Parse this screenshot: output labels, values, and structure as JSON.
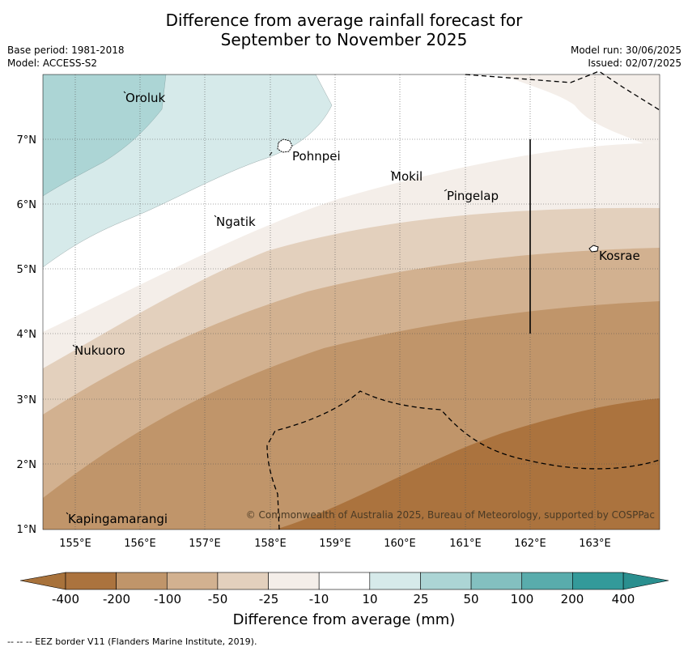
{
  "header": {
    "title_line1": "Difference from average rainfall forecast for",
    "title_line2": "September to November 2025",
    "base_period": "Base period: 1981-2018",
    "model": "Model: ACCESS-S2",
    "model_run": "Model run: 30/06/2025",
    "issued": "Issued: 02/07/2025"
  },
  "map": {
    "lon_labels": [
      "155°E",
      "156°E",
      "157°E",
      "158°E",
      "159°E",
      "160°E",
      "161°E",
      "162°E",
      "163°E"
    ],
    "lat_labels": [
      "7°N",
      "6°N",
      "5°N",
      "4°N",
      "3°N",
      "2°N",
      "1°N"
    ],
    "places": [
      "Oroluk",
      "Pohnpei",
      "Mokil",
      "Pingelap",
      "Ngatik",
      "Kosrae",
      "Nukuoro",
      "Kapingamarangi"
    ],
    "copyright": "© Commonwealth of Australia 2025, Bureau of Meteorology, supported by COSPPac"
  },
  "legend": {
    "tick_labels": [
      "-400",
      "-200",
      "-100",
      "-50",
      "-25",
      "-10",
      "10",
      "25",
      "50",
      "100",
      "200",
      "400"
    ],
    "colors": [
      "#a8723b",
      "#ab733e",
      "#c0956a",
      "#d2b190",
      "#e3d0bd",
      "#f4eee9",
      "#ffffff",
      "#d6eaea",
      "#acd5d5",
      "#83c0c0",
      "#59acac",
      "#339a9a",
      "#2a8f8f"
    ],
    "title": "Difference from average (mm)"
  },
  "footnote": "--  --  -- EEZ border V11 (Flanders Marine Institute, 2019)."
}
